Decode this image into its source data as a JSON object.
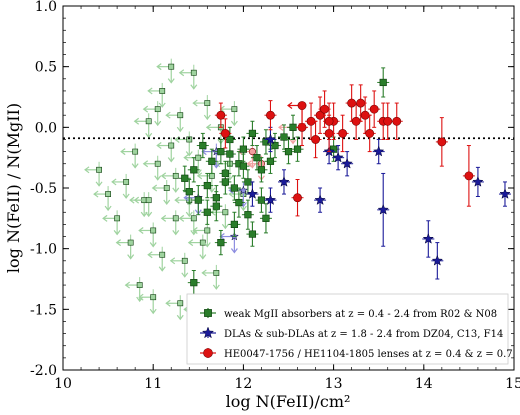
{
  "chart_data": {
    "type": "scatter",
    "xlabel": "log N(FeII)/cm²",
    "ylabel": "log N(FeII) / N(MgII)",
    "xlim": [
      10,
      15
    ],
    "ylim": [
      -2.0,
      1.0
    ],
    "xticks": [
      "10",
      "11",
      "12",
      "13",
      "14",
      "15"
    ],
    "yticks": [
      "1.0",
      "0.5",
      "0.0",
      "-0.5",
      "-1.0",
      "-1.5",
      "-2.0"
    ],
    "reference_line": {
      "y": -0.09,
      "style": "dotted"
    },
    "legend_position": "bottom-right",
    "series": [
      {
        "name": "weak MgII absorbers at z = 0.4 - 2.4 from R02 & N08",
        "color": "#2a7d2a",
        "marker": "square",
        "detections": [
          [
            11.35,
            -0.42,
            0.1
          ],
          [
            11.4,
            -0.53,
            0.1
          ],
          [
            11.45,
            -0.35,
            0.1
          ],
          [
            11.5,
            -0.6,
            0.12
          ],
          [
            11.55,
            -0.15,
            0.1
          ],
          [
            11.6,
            -0.48,
            0.1
          ],
          [
            11.65,
            -0.28,
            0.1
          ],
          [
            11.7,
            -0.65,
            0.12
          ],
          [
            11.75,
            -0.2,
            0.1
          ],
          [
            11.8,
            -0.38,
            0.1
          ],
          [
            11.85,
            -0.1,
            0.1
          ],
          [
            11.9,
            -0.5,
            0.1
          ],
          [
            11.95,
            -0.3,
            0.1
          ],
          [
            12.0,
            -0.18,
            0.1
          ],
          [
            12.05,
            -0.45,
            0.1
          ],
          [
            12.1,
            -0.05,
            0.1
          ],
          [
            12.15,
            -0.25,
            0.1
          ],
          [
            12.2,
            -0.35,
            0.1
          ],
          [
            12.25,
            -0.12,
            0.1
          ],
          [
            12.3,
            -0.28,
            0.1
          ],
          [
            12.35,
            -0.15,
            0.1
          ],
          [
            11.95,
            -0.62,
            0.12
          ],
          [
            12.05,
            -0.72,
            0.12
          ],
          [
            12.1,
            -0.88,
            0.1
          ],
          [
            11.9,
            -0.8,
            0.1
          ],
          [
            12.2,
            -0.6,
            0.1
          ],
          [
            11.7,
            -0.58,
            0.1
          ],
          [
            11.6,
            -0.7,
            0.1
          ],
          [
            11.85,
            -0.22,
            0.1
          ],
          [
            12.0,
            -0.32,
            0.1
          ],
          [
            11.45,
            -1.28,
            0.1
          ],
          [
            11.8,
            -0.45,
            0.1
          ],
          [
            12.45,
            -0.08,
            0.1
          ],
          [
            12.5,
            -0.2,
            0.1
          ],
          [
            12.55,
            -0.0,
            0.1
          ],
          [
            12.6,
            -0.18,
            0.1
          ],
          [
            13.0,
            -0.18,
            0.1
          ],
          [
            13.55,
            0.37,
            0.12
          ],
          [
            12.25,
            -0.75,
            0.12
          ],
          [
            11.75,
            -0.95,
            0.1
          ]
        ],
        "upper_limits": [
          [
            10.4,
            -0.35
          ],
          [
            10.5,
            -0.55
          ],
          [
            10.6,
            -0.75
          ],
          [
            10.7,
            -0.45
          ],
          [
            10.75,
            -0.95
          ],
          [
            10.8,
            -0.2
          ],
          [
            10.85,
            -1.3
          ],
          [
            10.9,
            -0.6
          ],
          [
            10.95,
            0.05
          ],
          [
            11.0,
            -0.85
          ],
          [
            11.05,
            -0.3
          ],
          [
            11.1,
            -1.05
          ],
          [
            11.1,
            0.3
          ],
          [
            11.15,
            -0.5
          ],
          [
            11.2,
            -0.15
          ],
          [
            11.25,
            -0.75
          ],
          [
            11.3,
            0.1
          ],
          [
            11.35,
            -1.1
          ],
          [
            11.4,
            -0.6
          ],
          [
            11.45,
            0.45
          ],
          [
            11.5,
            -0.25
          ],
          [
            11.55,
            -0.95
          ],
          [
            11.6,
            0.2
          ],
          [
            11.65,
            -0.4
          ],
          [
            11.7,
            -1.2
          ],
          [
            11.75,
            0.0
          ],
          [
            11.8,
            -0.7
          ],
          [
            11.85,
            -0.3
          ],
          [
            11.9,
            0.15
          ],
          [
            12.0,
            -0.55
          ],
          [
            11.3,
            -1.45
          ],
          [
            11.0,
            -1.4
          ],
          [
            11.2,
            0.5
          ],
          [
            11.4,
            -0.1
          ],
          [
            11.6,
            -0.85
          ],
          [
            11.05,
            0.15
          ],
          [
            10.95,
            -0.6
          ],
          [
            11.5,
            -1.5
          ],
          [
            11.25,
            -0.4
          ],
          [
            11.45,
            -0.75
          ]
        ]
      },
      {
        "name": "DLAs & sub-DLAs at z = 1.8 - 2.4 from DZ04, C13, F14",
        "color": "#1a1a99",
        "marker": "star",
        "detections": [
          [
            12.3,
            -0.6,
            0.1
          ],
          [
            12.85,
            -0.6,
            0.1
          ],
          [
            12.45,
            -0.45,
            0.1
          ],
          [
            12.95,
            -0.2,
            0.1
          ],
          [
            13.05,
            -0.25,
            0.1
          ],
          [
            13.15,
            -0.3,
            0.1
          ],
          [
            13.5,
            -0.2,
            0.1
          ],
          [
            13.55,
            -0.68,
            0.3
          ],
          [
            14.05,
            -0.92,
            0.15
          ],
          [
            14.15,
            -1.1,
            0.15
          ],
          [
            14.6,
            -0.45,
            0.12
          ],
          [
            14.9,
            -0.55,
            0.1
          ],
          [
            12.1,
            -0.55,
            0.1
          ],
          [
            12.3,
            -0.1,
            0.1
          ]
        ],
        "upper_limits": [
          [
            11.5,
            -0.58
          ],
          [
            12.0,
            -0.52
          ],
          [
            11.7,
            -0.2
          ],
          [
            11.9,
            -0.9
          ]
        ]
      },
      {
        "name": "HE0047-1756 / HE1104-1805 lenses at z = 0.4 & z = 0.7",
        "color": "#dd1111",
        "marker": "circle",
        "detections": [
          [
            12.65,
            0.0,
            0.15
          ],
          [
            12.75,
            0.05,
            0.15
          ],
          [
            12.85,
            0.1,
            0.15
          ],
          [
            12.95,
            -0.05,
            0.15
          ],
          [
            12.8,
            -0.1,
            0.15
          ],
          [
            12.9,
            0.15,
            0.15
          ],
          [
            13.0,
            0.05,
            0.15
          ],
          [
            13.1,
            -0.05,
            0.15
          ],
          [
            13.2,
            0.2,
            0.15
          ],
          [
            13.25,
            0.05,
            0.15
          ],
          [
            13.3,
            0.2,
            0.15
          ],
          [
            13.35,
            0.1,
            0.15
          ],
          [
            13.4,
            -0.05,
            0.15
          ],
          [
            13.45,
            0.15,
            0.15
          ],
          [
            13.55,
            0.05,
            0.15
          ],
          [
            13.6,
            0.05,
            0.15
          ],
          [
            13.7,
            0.05,
            0.15
          ],
          [
            12.95,
            0.05,
            0.15
          ],
          [
            12.6,
            -0.58,
            0.15
          ],
          [
            14.2,
            -0.12,
            0.2
          ],
          [
            14.5,
            -0.4,
            0.25
          ],
          [
            11.8,
            -0.05,
            0.12
          ],
          [
            12.3,
            0.1,
            0.12
          ],
          [
            11.75,
            0.1,
            0.1
          ]
        ],
        "upper_limits": [
          [
            12.1,
            -0.2
          ],
          [
            12.2,
            -0.3
          ],
          [
            12.55,
            0.0
          ]
        ],
        "lower_limits": [
          [
            12.65,
            0.18
          ]
        ]
      }
    ]
  },
  "colors": {
    "green": "#2a7d2a",
    "blue": "#1a1a99",
    "red": "#dd1111",
    "faded_green": "#9fd39f",
    "faded_blue": "#8d8de0"
  }
}
